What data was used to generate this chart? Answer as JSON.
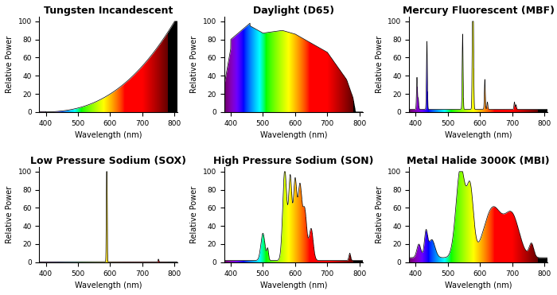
{
  "titles": [
    "Tungsten Incandescent",
    "Daylight (D65)",
    "Mercury Fluorescent (MBF)",
    "Low Pressure Sodium (SOX)",
    "High Pressure Sodium (SON)",
    "Metal Halide 3000K (MBI)"
  ],
  "xlabel": "Wavelength (nm)",
  "ylabel": "Relative Power",
  "xlim": [
    380,
    810
  ],
  "ylim": [
    0,
    105
  ],
  "yticks": [
    0,
    20,
    40,
    60,
    80,
    100
  ],
  "xticks": [
    400,
    500,
    600,
    700,
    800
  ],
  "background_color": "#ffffff",
  "title_fontsize": 9,
  "axis_fontsize": 7
}
